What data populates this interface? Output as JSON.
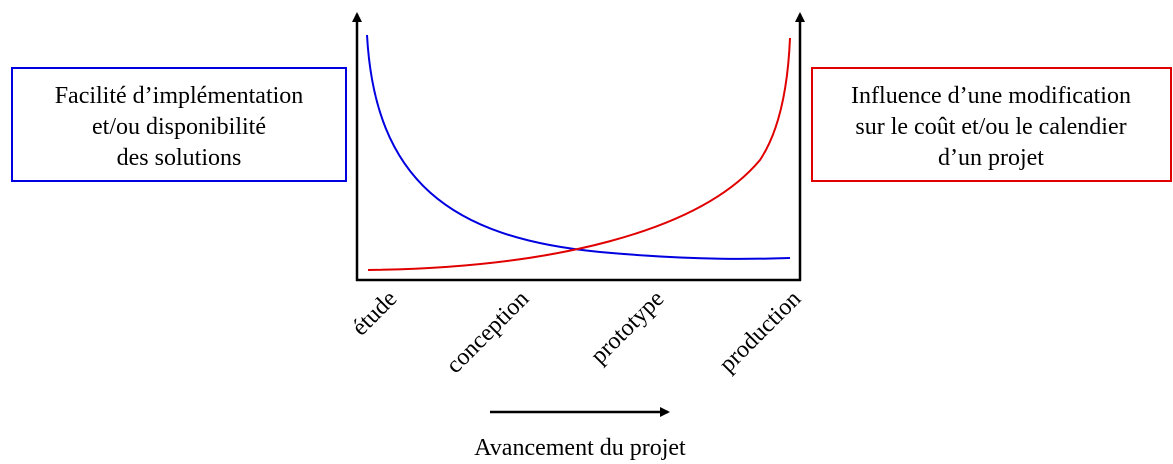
{
  "left_box": {
    "lines": [
      "Facilité d’implémentation",
      "et/ou disponibilité",
      "des solutions"
    ]
  },
  "right_box": {
    "lines": [
      "Influence d’une modification",
      "sur le coût et/ou le calendier",
      "d’un projet"
    ]
  },
  "stages": [
    "étude",
    "conception",
    "prototype",
    "production"
  ],
  "axis_label": "Avancement du projet"
}
